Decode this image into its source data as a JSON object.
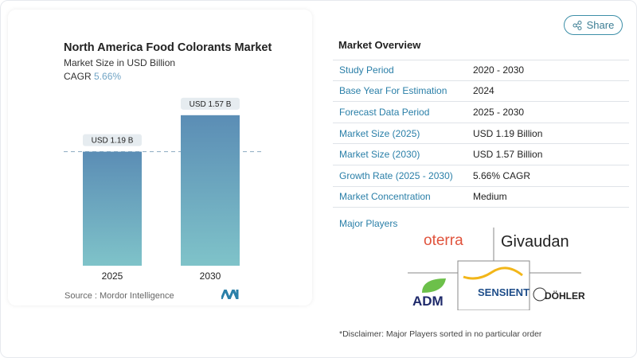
{
  "header": {
    "share_label": "Share",
    "share_icon": "share-icon"
  },
  "chart_data": {
    "type": "bar",
    "title": "North America Food Colorants Market",
    "subtitle": "Market Size in USD Billion",
    "cagr_label": "CAGR",
    "cagr_value": "5.66%",
    "categories": [
      "2025",
      "2030"
    ],
    "values": [
      1.19,
      1.57
    ],
    "data_labels": [
      "USD 1.19 B",
      "USD 1.57 B"
    ],
    "bar_color_top": "#5b8db5",
    "bar_color_bottom": "#7fc3c9",
    "reference_line": 1.19,
    "source": "Source :  Mordor Intelligence"
  },
  "overview": {
    "title": "Market Overview",
    "rows": [
      {
        "label": "Study Period",
        "value": "2020 - 2030"
      },
      {
        "label": "Base Year For Estimation",
        "value": "2024"
      },
      {
        "label": "Forecast Data Period",
        "value": "2025 - 2030"
      },
      {
        "label": "Market Size (2025)",
        "value": "USD 1.19 Billion"
      },
      {
        "label": "Market Size (2030)",
        "value": "USD 1.57 Billion"
      },
      {
        "label": "Growth Rate (2025 - 2030)",
        "value": "5.66% CAGR"
      },
      {
        "label": "Market Concentration",
        "value": "Medium"
      }
    ],
    "major_players_label": "Major Players",
    "players": [
      "oterra",
      "Givaudan",
      "ADM",
      "SENSIENT",
      "DÖHLER"
    ],
    "disclaimer": "*Disclaimer: Major Players sorted in no particular order"
  }
}
